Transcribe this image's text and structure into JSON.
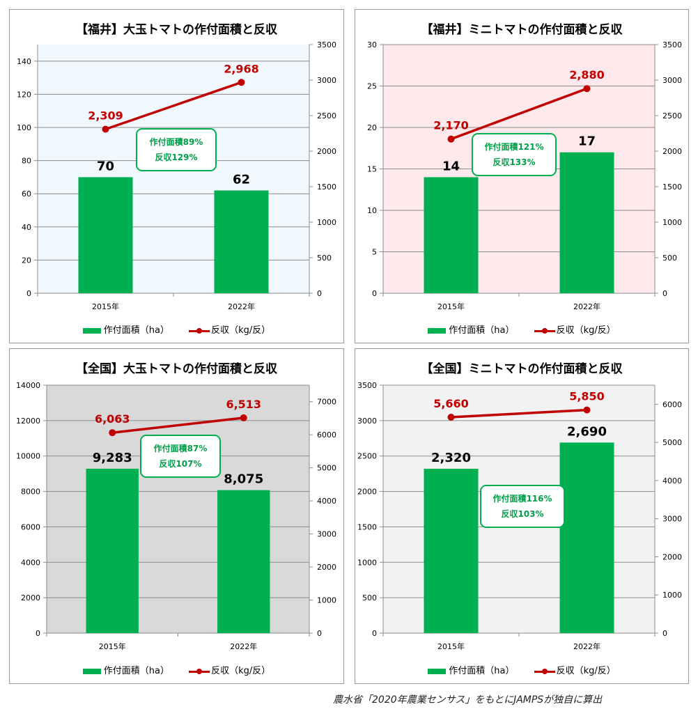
{
  "colors": {
    "bar": "#00b050",
    "line": "#c00000",
    "annotation": "#00b050"
  },
  "legend": {
    "bar_label": "作付面積（ha）",
    "line_label": "反収（kg/反）"
  },
  "source_note": "農水省「2020年農業センサス」をもとにJAMPSが独自に算出",
  "chart_data": [
    {
      "type": "bar",
      "title": "【福井】大玉トマトの作付面積と反収",
      "background": "#f0f7fd",
      "categories": [
        "2015年",
        "2022年"
      ],
      "series": [
        {
          "name": "作付面積（ha）",
          "type": "bar",
          "axis": "left",
          "values": [
            70,
            62
          ],
          "labels": [
            "70",
            "62"
          ]
        },
        {
          "name": "反収（kg/反）",
          "type": "line",
          "axis": "right",
          "values": [
            2309,
            2968
          ],
          "labels": [
            "2,309",
            "2,968"
          ]
        }
      ],
      "left_axis": {
        "ylim": [
          0,
          150
        ],
        "ticks": [
          "0",
          "20",
          "40",
          "60",
          "80",
          "100",
          "120",
          "140"
        ]
      },
      "right_axis": {
        "ylim": [
          0,
          3500
        ],
        "ticks": [
          "0",
          "500",
          "1000",
          "1500",
          "2000",
          "2500",
          "3000",
          "3500"
        ]
      },
      "annotation": {
        "line1": "作付面積89%",
        "line2": "反収129%"
      }
    },
    {
      "type": "bar",
      "title": "【福井】ミニトマトの作付面積と反収",
      "background": "#fde9ec",
      "categories": [
        "2015年",
        "2022年"
      ],
      "series": [
        {
          "name": "作付面積（ha）",
          "type": "bar",
          "axis": "left",
          "values": [
            14,
            17
          ],
          "labels": [
            "14",
            "17"
          ]
        },
        {
          "name": "反収（kg/反）",
          "type": "line",
          "axis": "right",
          "values": [
            2170,
            2880
          ],
          "labels": [
            "2,170",
            "2,880"
          ]
        }
      ],
      "left_axis": {
        "ylim": [
          0,
          30
        ],
        "ticks": [
          "0",
          "5",
          "10",
          "15",
          "20",
          "25",
          "30"
        ]
      },
      "right_axis": {
        "ylim": [
          0,
          3500
        ],
        "ticks": [
          "0",
          "500",
          "1000",
          "1500",
          "2000",
          "2500",
          "3000",
          "3500"
        ]
      },
      "annotation": {
        "line1": "作付面積121%",
        "line2": "反収133%"
      }
    },
    {
      "type": "bar",
      "title": "【全国】大玉トマトの作付面積と反収",
      "background": "#d9d9d9",
      "categories": [
        "2015年",
        "2022年"
      ],
      "series": [
        {
          "name": "作付面積（ha）",
          "type": "bar",
          "axis": "left",
          "values": [
            9283,
            8075
          ],
          "labels": [
            "9,283",
            "8,075"
          ]
        },
        {
          "name": "反収（kg/反）",
          "type": "line",
          "axis": "right",
          "values": [
            6063,
            6513
          ],
          "labels": [
            "6,063",
            "6,513"
          ]
        }
      ],
      "left_axis": {
        "ylim": [
          0,
          14000
        ],
        "ticks": [
          "0",
          "2000",
          "4000",
          "6000",
          "8000",
          "10000",
          "12000",
          "14000"
        ]
      },
      "right_axis": {
        "ylim": [
          0,
          7500
        ],
        "ticks": [
          "0",
          "1000",
          "2000",
          "3000",
          "4000",
          "5000",
          "6000",
          "7000"
        ]
      },
      "annotation": {
        "line1": "作付面積87%",
        "line2": "反収107%"
      }
    },
    {
      "type": "bar",
      "title": "【全国】ミニトマトの作付面積と反収",
      "background": "#f2f2f2",
      "categories": [
        "2015年",
        "2022年"
      ],
      "series": [
        {
          "name": "作付面積（ha）",
          "type": "bar",
          "axis": "left",
          "values": [
            2320,
            2690
          ],
          "labels": [
            "2,320",
            "2,690"
          ]
        },
        {
          "name": "反収（kg/反）",
          "type": "line",
          "axis": "right",
          "values": [
            5660,
            5850
          ],
          "labels": [
            "5,660",
            "5,850"
          ]
        }
      ],
      "left_axis": {
        "ylim": [
          0,
          3500
        ],
        "ticks": [
          "0",
          "500",
          "1000",
          "1500",
          "2000",
          "2500",
          "3000",
          "3500"
        ]
      },
      "right_axis": {
        "ylim": [
          0,
          6500
        ],
        "ticks": [
          "0",
          "1000",
          "2000",
          "3000",
          "4000",
          "5000",
          "6000"
        ]
      },
      "annotation": {
        "line1": "作付面積116%",
        "line2": "反収103%"
      }
    }
  ]
}
